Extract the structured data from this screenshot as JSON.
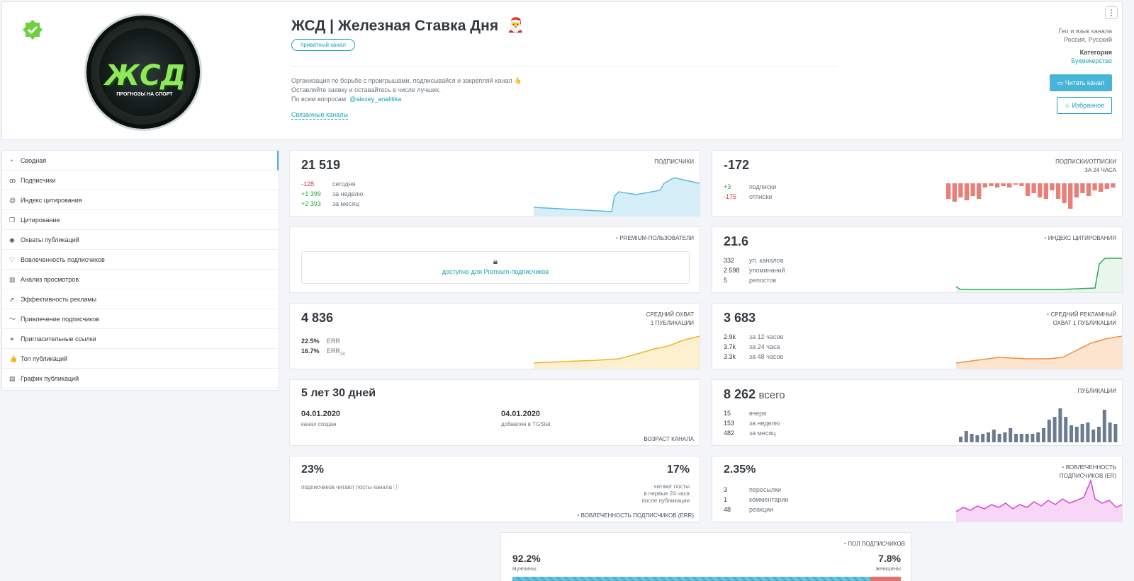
{
  "header": {
    "title": "ЖСД | Железная Ставка Дня",
    "santa": "🎅",
    "private_badge": "приватный канал",
    "desc_line1": "Организация по борьбе с проигрышами, подписывайся и закрепляй канал 👆",
    "desc_line2": "Оставляйте заявку и оставайтесь в числе лучших.",
    "desc_line3_prefix": "По всем вопросам: ",
    "desc_contact": "@alexey_analitika",
    "related": "Связанные каналы",
    "avatar_logo": "ЖСД",
    "avatar_sub": "ПРОГНОЗЫ НА СПОРТ",
    "menu": "⋮",
    "geo_label": "Гео и язык канала",
    "geo_value": "Россия, Русский",
    "category_label": "Категория",
    "category_value": "Букмекерство",
    "read_button": "Читать канал",
    "fav_button": "Избранное"
  },
  "sidebar": {
    "items": [
      {
        "icon": "◔",
        "label": "Сводная"
      },
      {
        "icon": "ꝏ",
        "label": "Подписчики"
      },
      {
        "icon": "@",
        "label": "Индекс цитирования"
      },
      {
        "icon": "❐",
        "label": "Цитирование"
      },
      {
        "icon": "◉",
        "label": "Охваты публикаций"
      },
      {
        "icon": "♡",
        "label": "Вовлеченность подписчиков"
      },
      {
        "icon": "▥",
        "label": "Анализ просмотров"
      },
      {
        "icon": "➚",
        "label": "Эффективность рекламы"
      },
      {
        "icon": "〜",
        "label": "Привлечение подписчиков"
      },
      {
        "icon": "⚭",
        "label": "Пригласительные ссылки"
      },
      {
        "icon": "👍",
        "label": "Топ публикаций"
      },
      {
        "icon": "▤",
        "label": "График публикаций"
      }
    ]
  },
  "subscribers": {
    "value": "21 519",
    "label": "ПОДПИСЧИКИ",
    "today": "-128",
    "today_label": "сегодня",
    "week": "+1 399",
    "week_label": "за неделю",
    "month": "+2 393",
    "month_label": "за месяц"
  },
  "subs_unsubs": {
    "value": "-172",
    "label1": "ПОДПИСКИ/ОТПИСКИ",
    "label2": "ЗА 24 ЧАСА",
    "subs": "+3",
    "subs_label": "подписки",
    "unsubs": "-175",
    "unsubs_label": "отписки"
  },
  "premium": {
    "label": "PREMIUM-ПОЛЬЗОВАТЕЛИ",
    "lock_text": "доступно для Premium-подписчиков"
  },
  "citation": {
    "value": "21.6",
    "label": "ИНДЕКС ЦИТИРОВАНИЯ",
    "r1_v": "332",
    "r1_l": "уп. каналов",
    "r2_v": "2 598",
    "r2_l": "упоминаний",
    "r3_v": "5",
    "r3_l": "репостов"
  },
  "reach": {
    "value": "4 836",
    "label1": "СРЕДНИЙ ОХВАТ",
    "label2": "1 ПУБЛИКАЦИИ",
    "err": "22.5%",
    "err_label": "ERR",
    "err24": "16.7%",
    "err24_label": "ERR",
    "err24_sub": "24"
  },
  "ad_reach": {
    "value": "3 683",
    "label1": "СРЕДНИЙ РЕКЛАМНЫЙ",
    "label2": "ОХВАТ 1 ПУБЛИКАЦИИ",
    "r1_v": "2.9k",
    "r1_l": "за 12 часов",
    "r2_v": "3.7k",
    "r2_l": "за 24 часа",
    "r3_v": "3.3k",
    "r3_l": "за 48 часов"
  },
  "age": {
    "value": "5 лет 30 дней",
    "created_date": "04.01.2020",
    "created_label": "канал создан",
    "added_date": "04.01.2020",
    "added_label": "добавлен в TGStat",
    "label": "ВОЗРАСТ КАНАЛА"
  },
  "posts": {
    "value": "8 262",
    "value_suffix": "всего",
    "label": "ПУБЛИКАЦИИ",
    "r1_v": "15",
    "r1_l": "вчера",
    "r2_v": "153",
    "r2_l": "за неделю",
    "r3_v": "482",
    "r3_l": "за месяц"
  },
  "engagement_err": {
    "left_value": "23%",
    "left_label": "подписчиков читают посты канала",
    "right_value": "17%",
    "right_l1": "читают посты",
    "right_l2": "в первые 24 часа",
    "right_l3": "после публикации",
    "label": "ВОВЛЕЧЕННОСТЬ ПОДПИСЧИКОВ (ERR)"
  },
  "engagement_er": {
    "value": "2.35%",
    "label1": "ВОВЛЕЧЕННОСТЬ",
    "label2": "ПОДПИСЧИКОВ (ER)",
    "r1_v": "3",
    "r1_l": "пересылки",
    "r2_v": "1",
    "r2_l": "комментарии",
    "r3_v": "48",
    "r3_l": "реакции"
  },
  "gender": {
    "label": "ПОЛ ПОДПИСЧИКОВ",
    "male": "92.2%",
    "male_label": "мужчины",
    "female": "7.8%",
    "female_label": "женщины",
    "male_share": 0.922
  },
  "colors": {
    "accent": "#48b4d8",
    "sub_line": "#5bb7de",
    "unsub_bar": "#e8807a",
    "citation_line": "#2fa84f",
    "reach_line": "#f0b429",
    "ad_reach_line": "#f08c3c",
    "posts_bar": "#6c7c90",
    "er_line": "#d648d0",
    "female_bar": "#e8706a"
  }
}
